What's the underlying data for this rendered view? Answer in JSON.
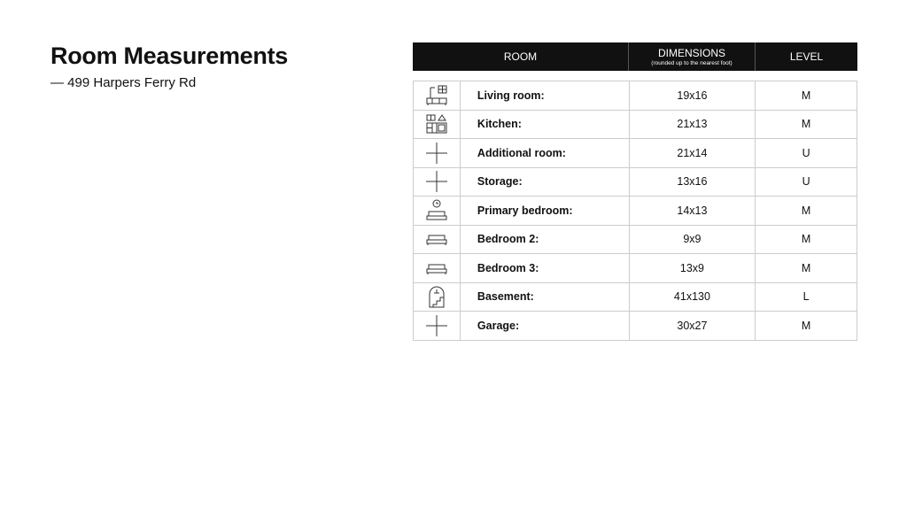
{
  "title": "Room Measurements",
  "subtitle": "— 499 Harpers Ferry Rd",
  "table": {
    "headers": {
      "room": "ROOM",
      "dimensions": "DIMENSIONS",
      "dimensions_note": "(rounded up to the nearest foot)",
      "level": "LEVEL"
    },
    "rows": [
      {
        "icon": "living-room-icon",
        "room": "Living room:",
        "dimensions": "19x16",
        "level": "M"
      },
      {
        "icon": "kitchen-icon",
        "room": "Kitchen:",
        "dimensions": "21x13",
        "level": "M"
      },
      {
        "icon": "plus-icon",
        "room": "Additional room:",
        "dimensions": "21x14",
        "level": "U"
      },
      {
        "icon": "plus-icon",
        "room": "Storage:",
        "dimensions": "13x16",
        "level": "U"
      },
      {
        "icon": "primary-bedroom-icon",
        "room": "Primary bedroom:",
        "dimensions": "14x13",
        "level": "M"
      },
      {
        "icon": "bed-icon",
        "room": "Bedroom 2:",
        "dimensions": "9x9",
        "level": "M"
      },
      {
        "icon": "bed-icon",
        "room": "Bedroom 3:",
        "dimensions": "13x9",
        "level": "M"
      },
      {
        "icon": "basement-icon",
        "room": "Basement:",
        "dimensions": "41x130",
        "level": "L"
      },
      {
        "icon": "plus-icon",
        "room": "Garage:",
        "dimensions": "30x27",
        "level": "M"
      }
    ]
  }
}
